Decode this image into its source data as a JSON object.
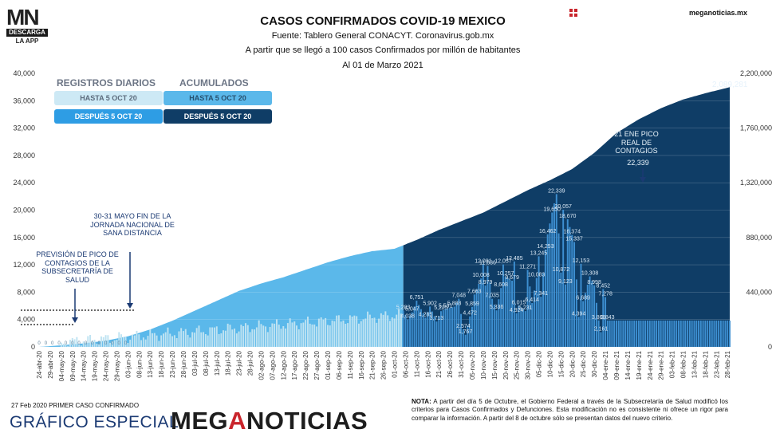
{
  "brand": {
    "logo_mn": "MN",
    "logo_descarga": "DESCARGA",
    "logo_app": "LA APP",
    "site": "meganoticias.mx",
    "grafico": "GRÁFICO ESPECIAL",
    "meganoticias_pre": "MEG",
    "meganoticias_a": "A",
    "meganoticias_post": "NOTICIAS"
  },
  "header": {
    "title": "CASOS CONFIRMADOS COVID-19 MEXICO",
    "source": "Fuente: Tablero General CONACYT. Coronavirus.gob.mx",
    "subtitle": "A partir que se llegó a 100 casos Confirmados por millón de habitantes",
    "date": "Al 01 de Marzo 2021"
  },
  "legend": {
    "daily_header": "REGISTROS DIARIOS",
    "cumulative_header": "ACUMULADOS",
    "daily_before": "HASTA 5 OCT 20",
    "daily_after": "DESPUÉS 5 OCT 20",
    "cum_before": "HASTA 5 OCT 20",
    "cum_after": "DESPUÉS 5 OCT 20"
  },
  "colors": {
    "daily_before": "#cde9f5",
    "daily_after": "#2e9de4",
    "cum_before": "#5bb8ea",
    "cum_after": "#0f3d66",
    "daily_bar_before": "#bfe3f2",
    "daily_bar_after": "#3d8fd1"
  },
  "annotations": {
    "prevision": "PREVISIÓN DE PICO DE CONTAGIOS DE LA SUBSECRETARÍA DE SALUD",
    "mayo": "30-31 MAYO FIN DE LA JORNADA NACIONAL DE SANA DISTANCIA",
    "pico": "21 ENE PICO REAL DE CONTAGIOS",
    "pico_value": "22,339",
    "final_cumulative": "2,089,281"
  },
  "footer": {
    "first_case": "27 Feb 2020 PRIMER CASO CONFIRMADO",
    "nota_label": "NOTA:",
    "nota_text": "A partir del día 5 de Octubre, el Gobierno Federal a través de la Subsecretaría de Salud modificó los criterios para Casos Confirmados y Defunciones. Esta modificación no es consistente ni ofrece un rigor para comparar la información. A partir del 8 de octubre sólo se presentan datos del nuevo criterio."
  },
  "chart_data": {
    "type": "bar",
    "title": "CASOS CONFIRMADOS COVID-19 MEXICO",
    "left_axis": {
      "ylim": [
        0,
        40000
      ],
      "ticks": [
        "0",
        "4,000",
        "8,000",
        "12,000",
        "16,000",
        "20,000",
        "24,000",
        "28,000",
        "32,000",
        "36,000",
        "40,000"
      ]
    },
    "right_axis": {
      "ylim": [
        0,
        2200000
      ],
      "ticks": [
        "0",
        "440,000",
        "880,000",
        "1,320,000",
        "1,760,000",
        "2,200,000"
      ]
    },
    "x_ticks": [
      "24-abr-20",
      "29-abr-20",
      "04-may-20",
      "09-may-20",
      "14-may-20",
      "19-may-20",
      "24-may-20",
      "29-may-20",
      "03-jun-20",
      "08-jun-20",
      "13-jun-20",
      "18-jun-20",
      "23-jun-20",
      "28-jun-20",
      "03-jul-20",
      "08-jul-20",
      "13-jul-20",
      "18-jul-20",
      "23-jul-20",
      "28-jul-20",
      "02-ago-20",
      "07-ago-20",
      "12-ago-20",
      "17-ago-20",
      "22-ago-20",
      "27-ago-20",
      "01-sep-20",
      "06-sep-20",
      "11-sep-20",
      "16-sep-20",
      "21-sep-20",
      "26-sep-20",
      "01-oct-20",
      "06-oct-20",
      "11-oct-20",
      "16-oct-20",
      "21-oct-20",
      "26-oct-20",
      "31-oct-20",
      "05-nov-20",
      "10-nov-20",
      "15-nov-20",
      "20-nov-20",
      "25-nov-20",
      "30-nov-20",
      "05-dic-20",
      "10-dic-20",
      "15-dic-20",
      "20-dic-20",
      "25-dic-20",
      "30-dic-20",
      "04-ene-21",
      "09-ene-21",
      "14-ene-21",
      "19-ene-21",
      "24-ene-21",
      "29-ene-21",
      "03-feb-21",
      "08-feb-21",
      "13-feb-21",
      "18-feb-21",
      "23-feb-21",
      "28-feb-21"
    ],
    "cumulative_series": {
      "name": "ACUMULADOS",
      "points": [
        [
          0,
          0
        ],
        [
          10,
          13000
        ],
        [
          20,
          28000
        ],
        [
          30,
          50000
        ],
        [
          40,
          85000
        ],
        [
          50,
          140000
        ],
        [
          60,
          210000
        ],
        [
          70,
          290000
        ],
        [
          80,
          370000
        ],
        [
          90,
          450000
        ],
        [
          100,
          510000
        ],
        [
          110,
          560000
        ],
        [
          120,
          620000
        ],
        [
          130,
          680000
        ],
        [
          140,
          730000
        ],
        [
          150,
          770000
        ],
        [
          160,
          789000
        ],
        [
          170,
          860000
        ],
        [
          180,
          940000
        ],
        [
          190,
          1010000
        ],
        [
          200,
          1080000
        ],
        [
          210,
          1170000
        ],
        [
          220,
          1260000
        ],
        [
          230,
          1340000
        ],
        [
          240,
          1430000
        ],
        [
          250,
          1560000
        ],
        [
          260,
          1720000
        ],
        [
          270,
          1830000
        ],
        [
          280,
          1920000
        ],
        [
          290,
          1990000
        ],
        [
          300,
          2040000
        ],
        [
          311,
          2089281
        ]
      ]
    },
    "daily_series": {
      "name": "REGISTROS DIARIOS",
      "before_oct5_range": [
        0,
        5500
      ],
      "labeled_values": [
        {
          "day": 164,
          "value": 5283
        },
        {
          "day": 166,
          "value": 4038
        },
        {
          "day": 168,
          "value": 5047
        },
        {
          "day": 170,
          "value": 6751
        },
        {
          "day": 174,
          "value": 4285
        },
        {
          "day": 176,
          "value": 5902
        },
        {
          "day": 179,
          "value": 3713
        },
        {
          "day": 181,
          "value": 5225
        },
        {
          "day": 183,
          "value": 5531
        },
        {
          "day": 187,
          "value": 5888
        },
        {
          "day": 189,
          "value": 7048
        },
        {
          "day": 191,
          "value": 2574
        },
        {
          "day": 192,
          "value": 1767
        },
        {
          "day": 194,
          "value": 4472
        },
        {
          "day": 195,
          "value": 5859
        },
        {
          "day": 196,
          "value": 7663
        },
        {
          "day": 199,
          "value": 10008
        },
        {
          "day": 200,
          "value": 12081
        },
        {
          "day": 201,
          "value": 8979
        },
        {
          "day": 202,
          "value": 11836
        },
        {
          "day": 204,
          "value": 7035
        },
        {
          "day": 206,
          "value": 5336
        },
        {
          "day": 208,
          "value": 8608
        },
        {
          "day": 209,
          "value": 12057
        },
        {
          "day": 210,
          "value": 10257
        },
        {
          "day": 213,
          "value": 9679
        },
        {
          "day": 214,
          "value": 12485
        },
        {
          "day": 215,
          "value": 4924
        },
        {
          "day": 216,
          "value": 6015
        },
        {
          "day": 219,
          "value": 5231
        },
        {
          "day": 220,
          "value": 11271
        },
        {
          "day": 222,
          "value": 6414
        },
        {
          "day": 224,
          "value": 10083
        },
        {
          "day": 225,
          "value": 13245
        },
        {
          "day": 226,
          "value": 7341
        },
        {
          "day": 228,
          "value": 14253
        },
        {
          "day": 229,
          "value": 16462
        },
        {
          "day": 231,
          "value": 19650
        },
        {
          "day": 233,
          "value": 22339
        },
        {
          "day": 235,
          "value": 10872
        },
        {
          "day": 236,
          "value": 20057
        },
        {
          "day": 237,
          "value": 9123
        },
        {
          "day": 238,
          "value": 18670
        },
        {
          "day": 240,
          "value": 16374
        },
        {
          "day": 241,
          "value": 15337
        },
        {
          "day": 243,
          "value": 4394
        },
        {
          "day": 244,
          "value": 12153
        },
        {
          "day": 245,
          "value": 6689
        },
        {
          "day": 248,
          "value": 10308
        },
        {
          "day": 250,
          "value": 8998
        },
        {
          "day": 252,
          "value": 3868
        },
        {
          "day": 253,
          "value": 2161
        },
        {
          "day": 254,
          "value": 8452
        },
        {
          "day": 255,
          "value": 7278
        },
        {
          "day": 256,
          "value": 3843
        }
      ]
    },
    "break_day": 164,
    "total_days": 312
  }
}
